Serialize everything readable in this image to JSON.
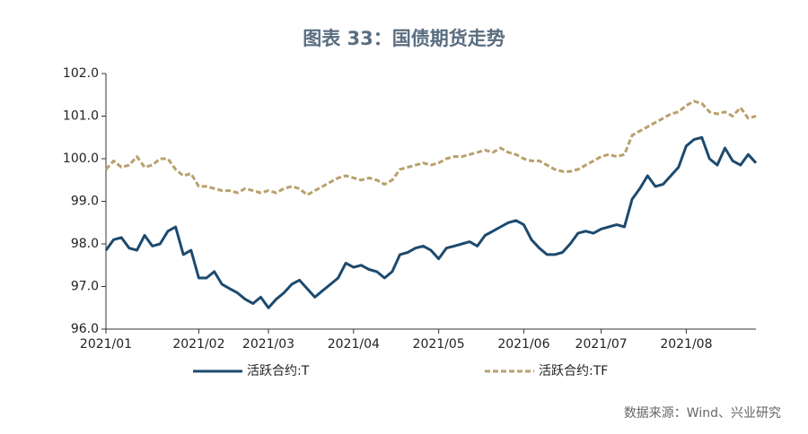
{
  "chart_data": {
    "type": "line",
    "title": "图表 33：国债期货走势",
    "source": "数据来源：Wind、兴业研究",
    "categories": [
      "2021/01",
      null,
      null,
      null,
      null,
      null,
      null,
      null,
      null,
      null,
      null,
      null,
      "2021/02",
      null,
      null,
      null,
      null,
      null,
      null,
      null,
      null,
      "2021/03",
      null,
      null,
      null,
      null,
      null,
      null,
      null,
      null,
      null,
      null,
      "2021/04",
      null,
      null,
      null,
      null,
      null,
      null,
      null,
      null,
      null,
      null,
      "2021/05",
      null,
      null,
      null,
      null,
      null,
      null,
      null,
      null,
      null,
      null,
      "2021/06",
      null,
      null,
      null,
      null,
      null,
      null,
      null,
      null,
      null,
      "2021/07",
      null,
      null,
      null,
      null,
      null,
      null,
      null,
      null,
      null,
      null,
      "2021/08",
      null,
      null,
      null,
      null,
      null,
      null,
      null,
      null,
      null
    ],
    "series": [
      {
        "name": "活跃合约:T",
        "color": "#1d4a6e",
        "dash": false,
        "values": [
          97.85,
          98.1,
          98.15,
          97.9,
          97.85,
          98.2,
          97.95,
          98.0,
          98.3,
          98.4,
          97.75,
          97.85,
          97.2,
          97.2,
          97.35,
          97.05,
          96.95,
          96.85,
          96.7,
          96.6,
          96.75,
          96.5,
          96.7,
          96.85,
          97.05,
          97.15,
          96.95,
          96.75,
          96.9,
          97.05,
          97.2,
          97.55,
          97.45,
          97.5,
          97.4,
          97.35,
          97.2,
          97.35,
          97.75,
          97.8,
          97.9,
          97.95,
          97.85,
          97.65,
          97.9,
          97.95,
          98.0,
          98.05,
          97.95,
          98.2,
          98.3,
          98.4,
          98.5,
          98.55,
          98.45,
          98.1,
          97.9,
          97.75,
          97.75,
          97.8,
          98.0,
          98.25,
          98.3,
          98.25,
          98.35,
          98.4,
          98.45,
          98.4,
          99.05,
          99.3,
          99.6,
          99.35,
          99.4,
          99.6,
          99.8,
          100.3,
          100.45,
          100.5,
          100.0,
          99.85,
          100.25,
          99.95,
          99.85,
          100.1,
          99.9
        ]
      },
      {
        "name": "活跃合约:TF",
        "color": "#b9a06c",
        "dash": true,
        "values": [
          99.75,
          99.95,
          99.8,
          99.85,
          100.05,
          99.8,
          99.85,
          100.0,
          100.0,
          99.75,
          99.6,
          99.65,
          99.35,
          99.35,
          99.3,
          99.25,
          99.25,
          99.2,
          99.3,
          99.25,
          99.2,
          99.25,
          99.2,
          99.3,
          99.35,
          99.3,
          99.15,
          99.25,
          99.35,
          99.45,
          99.55,
          99.6,
          99.55,
          99.5,
          99.55,
          99.5,
          99.4,
          99.5,
          99.75,
          99.8,
          99.85,
          99.9,
          99.85,
          99.9,
          100.0,
          100.05,
          100.05,
          100.1,
          100.15,
          100.2,
          100.15,
          100.25,
          100.15,
          100.1,
          100.0,
          99.95,
          99.95,
          99.85,
          99.75,
          99.7,
          99.7,
          99.75,
          99.85,
          99.95,
          100.05,
          100.1,
          100.05,
          100.1,
          100.55,
          100.65,
          100.75,
          100.85,
          100.95,
          101.05,
          101.1,
          101.25,
          101.35,
          101.3,
          101.1,
          101.05,
          101.1,
          101.0,
          101.2,
          100.95,
          101.0
        ]
      }
    ],
    "ylim": [
      96,
      102
    ],
    "yticks": [
      {
        "value": 96,
        "label": "96.0"
      },
      {
        "value": 97,
        "label": "97.0"
      },
      {
        "value": 98,
        "label": "98.0"
      },
      {
        "value": 99,
        "label": "99.0"
      },
      {
        "value": 100,
        "label": "100.0"
      },
      {
        "value": 101,
        "label": "101.0"
      },
      {
        "value": 102,
        "label": "102.0"
      }
    ],
    "grid": false,
    "legend": "bottom"
  }
}
